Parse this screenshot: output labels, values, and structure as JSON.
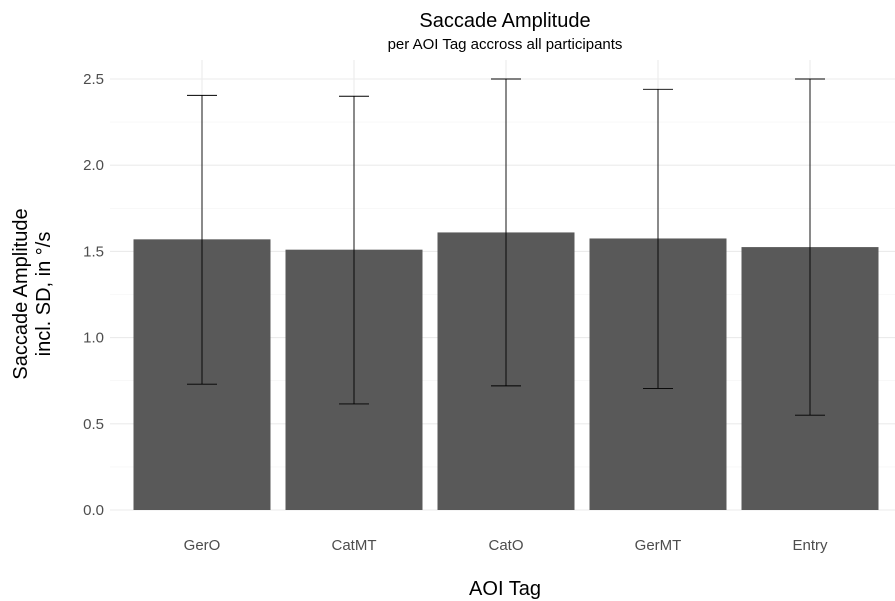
{
  "chart_data": {
    "type": "bar",
    "title": "Saccade Amplitude",
    "subtitle": "per AOI Tag accross all participants",
    "xlabel": "AOI Tag",
    "ylabel_line1": "Saccade Amplitude",
    "ylabel_line2": "incl. SD, in °/s",
    "categories": [
      "GerO",
      "CatMT",
      "CatO",
      "GerMT",
      "Entry"
    ],
    "values": [
      1.57,
      1.51,
      1.61,
      1.575,
      1.525
    ],
    "error_low": [
      0.73,
      0.615,
      0.72,
      0.705,
      0.55
    ],
    "error_high": [
      2.405,
      2.4,
      2.5,
      2.44,
      2.5
    ],
    "yticks": [
      "0.0",
      "0.5",
      "1.0",
      "1.5",
      "2.0",
      "2.5"
    ],
    "ylim": [
      0,
      2.6
    ],
    "grid": true,
    "legend": "none",
    "colors": {
      "bar": "#595959",
      "grid": "#ebebeb"
    }
  }
}
